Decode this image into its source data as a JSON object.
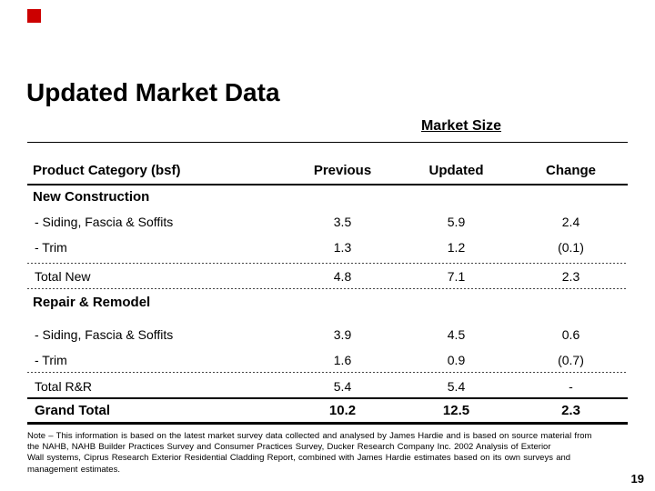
{
  "slide": {
    "title": "Updated Market Data",
    "page_number": "19",
    "accent_color": "#cc0000",
    "text_color": "#000000",
    "background_color": "#ffffff"
  },
  "table": {
    "subtitle": "Market Size",
    "headers": {
      "category": "Product Category (bsf)",
      "previous": "Previous",
      "updated": "Updated",
      "change": "Change"
    },
    "sections": [
      {
        "name": "New Construction",
        "rows": [
          {
            "label": "- Siding, Fascia & Soffits",
            "previous": "3.5",
            "updated": "5.9",
            "change": "2.4"
          },
          {
            "label": "- Trim",
            "previous": "1.3",
            "updated": "1.2",
            "change": "(0.1)"
          },
          {
            "label": "Total New",
            "previous": "4.8",
            "updated": "7.1",
            "change": "2.3"
          }
        ]
      },
      {
        "name": "Repair & Remodel",
        "rows": [
          {
            "label": "- Siding, Fascia & Soffits",
            "previous": "3.9",
            "updated": "4.5",
            "change": "0.6"
          },
          {
            "label": "- Trim",
            "previous": "1.6",
            "updated": "0.9",
            "change": "(0.7)"
          },
          {
            "label": "Total R&R",
            "previous": "5.4",
            "updated": "5.4",
            "change": "-"
          }
        ]
      }
    ],
    "grand_total": {
      "label": "Grand Total",
      "previous": "10.2",
      "updated": "12.5",
      "change": "2.3"
    }
  },
  "footnote": {
    "lines": [
      "Note – This information is based on the latest market survey data collected and analysed by James Hardie and is based on source material from",
      "the NAHB, NAHB Builder Practices Survey and Consumer Practices Survey, Ducker Research Company Inc. 2002 Analysis of Exterior",
      "Wall systems, Ciprus Research Exterior Residential Cladding Report, combined with James Hardie estimates based on its own surveys and",
      "management estimates."
    ]
  }
}
